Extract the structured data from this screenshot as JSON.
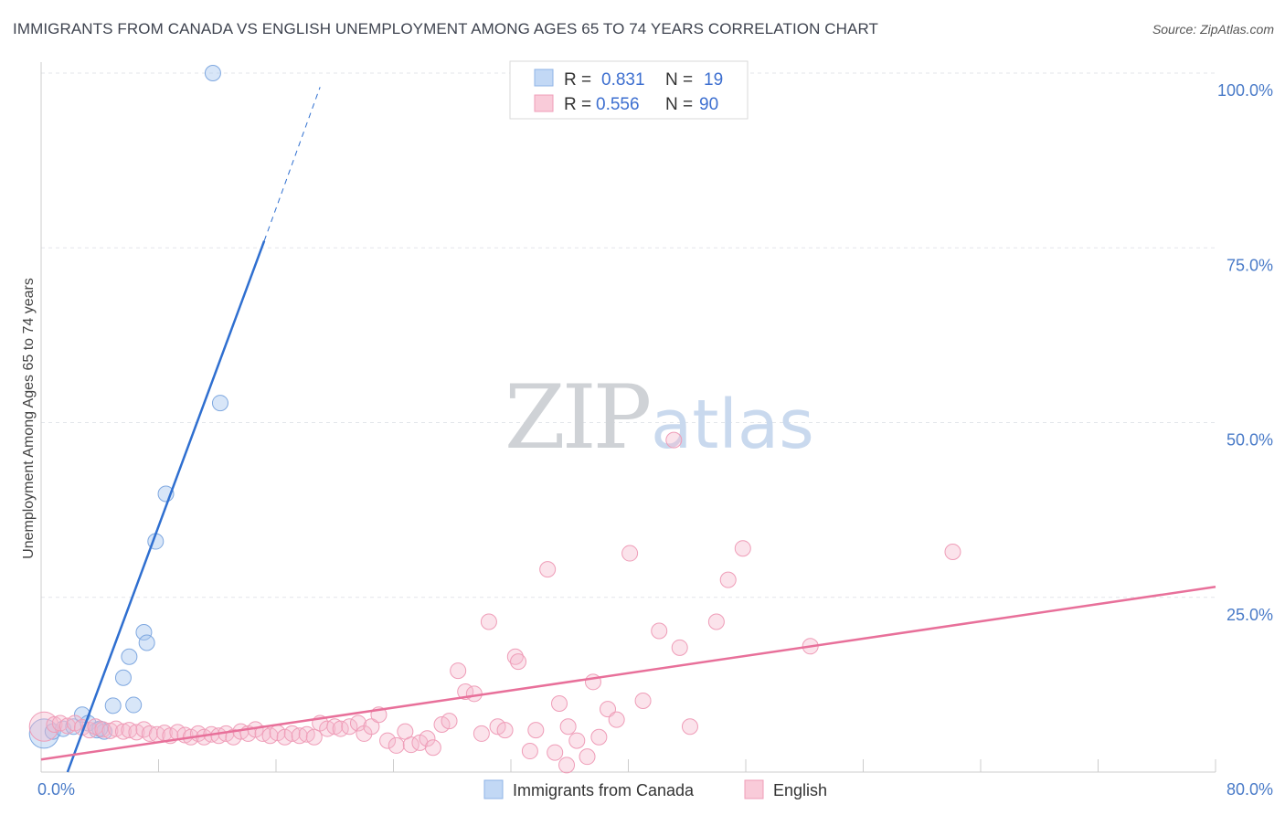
{
  "title": "IMMIGRANTS FROM CANADA VS ENGLISH UNEMPLOYMENT AMONG AGES 65 TO 74 YEARS CORRELATION CHART",
  "source": "Source: ZipAtlas.com",
  "watermark": {
    "zip": "ZIP",
    "atlas": "atlas"
  },
  "legend": {
    "rows": [
      {
        "r_label": "R = ",
        "r_value": "0.831",
        "n_label": "N = ",
        "n_value": "19",
        "color": "#a8c8f0"
      },
      {
        "r_label": "R = ",
        "r_value": "0.556",
        "n_label": "N = ",
        "n_value": "90",
        "color": "#f5b8cc"
      }
    ]
  },
  "bottom_legend": [
    {
      "label": "Immigrants from Canada",
      "color": "#a8c8f0"
    },
    {
      "label": "English",
      "color": "#f5b8cc"
    }
  ],
  "chart_data": {
    "type": "scatter",
    "title": "IMMIGRANTS FROM CANADA VS ENGLISH UNEMPLOYMENT AMONG AGES 65 TO 74 YEARS CORRELATION CHART",
    "xlabel": "",
    "ylabel": "Unemployment Among Ages 65 to 74 years",
    "xlim": [
      0,
      80
    ],
    "ylim": [
      0,
      100
    ],
    "x_tick_labels": [
      {
        "value": 0,
        "label": "0.0%"
      },
      {
        "value": 80,
        "label": "80.0%"
      }
    ],
    "y_tick_labels": [
      {
        "value": 25,
        "label": "25.0%"
      },
      {
        "value": 50,
        "label": "50.0%"
      },
      {
        "value": 75,
        "label": "75.0%"
      },
      {
        "value": 100,
        "label": "100.0%"
      }
    ],
    "series": [
      {
        "name": "Immigrants from Canada",
        "color": "#a8c8f0",
        "line_color": "#2f6fd0",
        "trend": {
          "x0": 1.8,
          "y0": 0,
          "x1": 15.2,
          "y1": 76,
          "dash_x1": 19.0,
          "dash_y1": 98
        },
        "points": [
          {
            "x": 0.2,
            "y": 5.5,
            "big": true
          },
          {
            "x": 0.8,
            "y": 5.8
          },
          {
            "x": 1.5,
            "y": 6.2
          },
          {
            "x": 2.2,
            "y": 6.5
          },
          {
            "x": 2.8,
            "y": 8.2
          },
          {
            "x": 3.2,
            "y": 7.0
          },
          {
            "x": 3.8,
            "y": 6.0
          },
          {
            "x": 4.3,
            "y": 5.8
          },
          {
            "x": 4.9,
            "y": 9.5
          },
          {
            "x": 5.6,
            "y": 13.5
          },
          {
            "x": 6.0,
            "y": 16.5
          },
          {
            "x": 6.3,
            "y": 9.6
          },
          {
            "x": 7.0,
            "y": 20.0
          },
          {
            "x": 7.2,
            "y": 18.5
          },
          {
            "x": 7.8,
            "y": 33.0
          },
          {
            "x": 8.5,
            "y": 39.8
          },
          {
            "x": 11.7,
            "y": 100.0
          },
          {
            "x": 12.2,
            "y": 52.8
          },
          {
            "x": 4.0,
            "y": 6.2
          }
        ]
      },
      {
        "name": "English",
        "color": "#f5b8cc",
        "line_color": "#e8709a",
        "trend": {
          "x0": 0,
          "y0": 1.8,
          "x1": 80,
          "y1": 26.5
        },
        "points": [
          {
            "x": 0.2,
            "y": 6.5,
            "big": true
          },
          {
            "x": 0.9,
            "y": 6.8
          },
          {
            "x": 1.3,
            "y": 7.0
          },
          {
            "x": 1.8,
            "y": 6.6
          },
          {
            "x": 2.3,
            "y": 7.0
          },
          {
            "x": 2.8,
            "y": 6.4
          },
          {
            "x": 3.3,
            "y": 6.0
          },
          {
            "x": 3.7,
            "y": 6.5
          },
          {
            "x": 4.2,
            "y": 6.1
          },
          {
            "x": 4.7,
            "y": 5.9
          },
          {
            "x": 5.1,
            "y": 6.2
          },
          {
            "x": 5.6,
            "y": 5.8
          },
          {
            "x": 6.0,
            "y": 6.0
          },
          {
            "x": 6.5,
            "y": 5.7
          },
          {
            "x": 7.0,
            "y": 6.1
          },
          {
            "x": 7.4,
            "y": 5.5
          },
          {
            "x": 7.9,
            "y": 5.4
          },
          {
            "x": 8.4,
            "y": 5.6
          },
          {
            "x": 8.8,
            "y": 5.2
          },
          {
            "x": 9.3,
            "y": 5.7
          },
          {
            "x": 9.8,
            "y": 5.3
          },
          {
            "x": 10.2,
            "y": 5.0
          },
          {
            "x": 10.7,
            "y": 5.5
          },
          {
            "x": 11.1,
            "y": 5.0
          },
          {
            "x": 11.6,
            "y": 5.4
          },
          {
            "x": 12.1,
            "y": 5.2
          },
          {
            "x": 12.6,
            "y": 5.5
          },
          {
            "x": 13.1,
            "y": 5.0
          },
          {
            "x": 13.6,
            "y": 5.8
          },
          {
            "x": 14.1,
            "y": 5.5
          },
          {
            "x": 14.6,
            "y": 6.1
          },
          {
            "x": 15.1,
            "y": 5.5
          },
          {
            "x": 15.6,
            "y": 5.2
          },
          {
            "x": 16.1,
            "y": 5.6
          },
          {
            "x": 16.6,
            "y": 5.0
          },
          {
            "x": 17.1,
            "y": 5.5
          },
          {
            "x": 17.6,
            "y": 5.2
          },
          {
            "x": 18.1,
            "y": 5.4
          },
          {
            "x": 18.6,
            "y": 5.0
          },
          {
            "x": 19.0,
            "y": 7.0
          },
          {
            "x": 19.5,
            "y": 6.2
          },
          {
            "x": 20.0,
            "y": 6.5
          },
          {
            "x": 20.4,
            "y": 6.2
          },
          {
            "x": 21.0,
            "y": 6.5
          },
          {
            "x": 21.6,
            "y": 7.0
          },
          {
            "x": 22.0,
            "y": 5.5
          },
          {
            "x": 22.5,
            "y": 6.5
          },
          {
            "x": 23.0,
            "y": 8.2
          },
          {
            "x": 23.6,
            "y": 4.5
          },
          {
            "x": 24.2,
            "y": 3.8
          },
          {
            "x": 24.8,
            "y": 5.8
          },
          {
            "x": 25.2,
            "y": 3.9
          },
          {
            "x": 25.8,
            "y": 4.2
          },
          {
            "x": 26.3,
            "y": 4.8
          },
          {
            "x": 26.7,
            "y": 3.5
          },
          {
            "x": 27.3,
            "y": 6.8
          },
          {
            "x": 27.8,
            "y": 7.3
          },
          {
            "x": 28.4,
            "y": 14.5
          },
          {
            "x": 28.9,
            "y": 11.5
          },
          {
            "x": 29.5,
            "y": 11.2
          },
          {
            "x": 30.0,
            "y": 5.5
          },
          {
            "x": 30.5,
            "y": 21.5
          },
          {
            "x": 31.1,
            "y": 6.5
          },
          {
            "x": 31.6,
            "y": 6.0
          },
          {
            "x": 32.3,
            "y": 16.5
          },
          {
            "x": 32.5,
            "y": 15.8
          },
          {
            "x": 33.3,
            "y": 3.0
          },
          {
            "x": 33.7,
            "y": 6.0
          },
          {
            "x": 34.5,
            "y": 29.0
          },
          {
            "x": 35.0,
            "y": 2.8
          },
          {
            "x": 35.3,
            "y": 9.8
          },
          {
            "x": 35.9,
            "y": 6.5
          },
          {
            "x": 36.5,
            "y": 4.5
          },
          {
            "x": 37.2,
            "y": 2.2
          },
          {
            "x": 37.6,
            "y": 12.9
          },
          {
            "x": 38.0,
            "y": 5.0
          },
          {
            "x": 38.6,
            "y": 9.0
          },
          {
            "x": 39.2,
            "y": 7.5
          },
          {
            "x": 40.1,
            "y": 31.3
          },
          {
            "x": 41.0,
            "y": 10.2
          },
          {
            "x": 42.1,
            "y": 20.2
          },
          {
            "x": 43.1,
            "y": 47.5
          },
          {
            "x": 43.5,
            "y": 17.8
          },
          {
            "x": 44.2,
            "y": 6.5
          },
          {
            "x": 46.0,
            "y": 21.5
          },
          {
            "x": 46.8,
            "y": 27.5
          },
          {
            "x": 47.8,
            "y": 32.0
          },
          {
            "x": 52.4,
            "y": 18.0
          },
          {
            "x": 62.1,
            "y": 31.5
          },
          {
            "x": 35.8,
            "y": 1.0
          }
        ]
      }
    ]
  }
}
